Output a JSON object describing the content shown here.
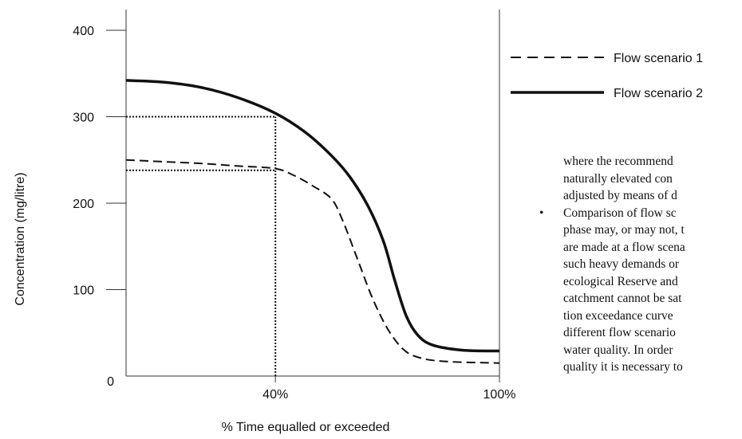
{
  "chart_data": {
    "type": "line",
    "ylabel": "Concentration (mg/litre)",
    "xlabel": "% Time equalled or exceeded",
    "ylim": [
      0,
      400
    ],
    "xlim": [
      0,
      100
    ],
    "y_ticks": [
      {
        "value": 0,
        "label": "0"
      },
      {
        "value": 100,
        "label": "100"
      },
      {
        "value": 200,
        "label": "200"
      },
      {
        "value": 300,
        "label": "300"
      },
      {
        "value": 400,
        "label": "400"
      }
    ],
    "x_ticks": [
      {
        "value": 40,
        "label": "40%"
      },
      {
        "value": 100,
        "label": "100%"
      }
    ],
    "legend_position": "right",
    "series": [
      {
        "name": "Flow scenario 1",
        "style": "dashed",
        "points": [
          [
            0,
            250
          ],
          [
            10,
            248
          ],
          [
            20,
            246
          ],
          [
            30,
            243
          ],
          [
            40,
            240
          ],
          [
            45,
            232
          ],
          [
            50,
            220
          ],
          [
            55,
            205
          ],
          [
            58,
            180
          ],
          [
            62,
            135
          ],
          [
            66,
            90
          ],
          [
            70,
            55
          ],
          [
            74,
            32
          ],
          [
            78,
            22
          ],
          [
            85,
            17
          ],
          [
            100,
            15
          ]
        ]
      },
      {
        "name": "Flow scenario 2",
        "style": "solid",
        "points": [
          [
            0,
            342
          ],
          [
            10,
            340
          ],
          [
            20,
            334
          ],
          [
            30,
            322
          ],
          [
            40,
            304
          ],
          [
            48,
            282
          ],
          [
            55,
            255
          ],
          [
            60,
            230
          ],
          [
            65,
            195
          ],
          [
            69,
            155
          ],
          [
            72,
            110
          ],
          [
            75,
            70
          ],
          [
            78,
            48
          ],
          [
            82,
            36
          ],
          [
            90,
            30
          ],
          [
            100,
            29
          ]
        ]
      }
    ],
    "reference_lines": [
      {
        "type": "horizontal",
        "y": 300,
        "x_to": 40
      },
      {
        "type": "horizontal",
        "y": 238,
        "x_to": 40
      },
      {
        "type": "vertical",
        "x": 40,
        "y_to": 300
      }
    ]
  },
  "document_text": {
    "lines": [
      "where the recommend",
      "naturally elevated con",
      "adjusted by means of d",
      "Comparison of flow sc",
      "phase may, or may not, t",
      "are made at a flow scena",
      "such heavy demands or",
      "ecological Reserve and",
      "catchment cannot be sat",
      "tion exceedance curve",
      "different flow scenario",
      "water quality. In order",
      "quality it is necessary to"
    ],
    "bullet": "•"
  }
}
